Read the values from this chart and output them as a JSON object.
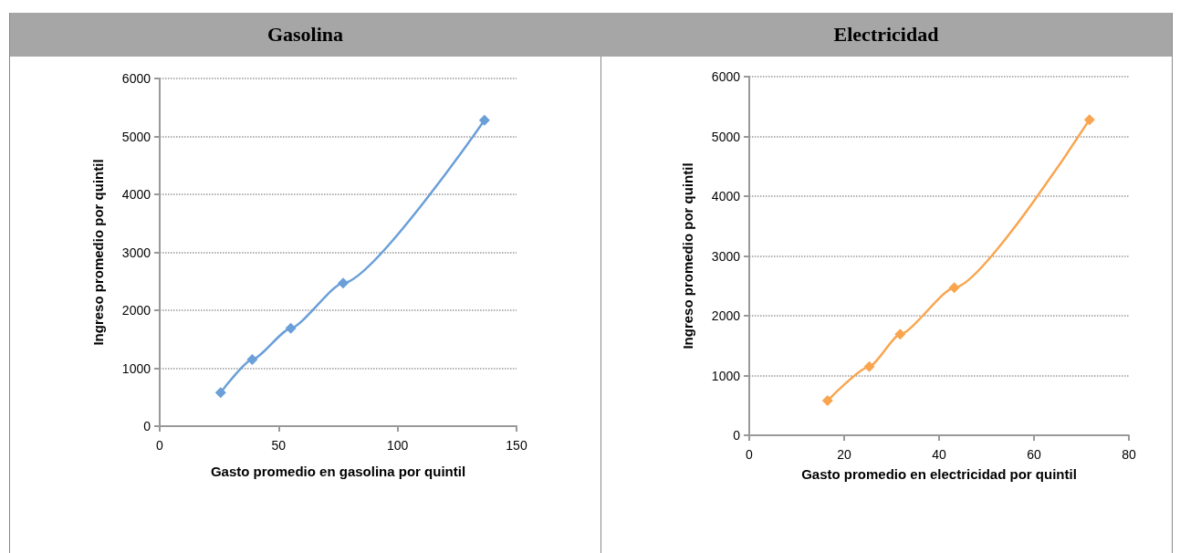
{
  "chart_data": [
    {
      "type": "line",
      "title": "Gasolina",
      "xlabel": "Gasto promedio en gasolina por quintil",
      "ylabel": "Ingreso promedio por quintil",
      "x": [
        25.6,
        38.9,
        55.1,
        77.1,
        136.5
      ],
      "series": [
        {
          "color": "#6a9fd8",
          "values": [
            580,
            1150,
            1690,
            2470,
            5280
          ]
        }
      ],
      "xlim": [
        0,
        150
      ],
      "xticks": [
        0,
        50,
        100,
        150
      ],
      "ylim": [
        0,
        6000
      ],
      "yticks": [
        0,
        1000,
        2000,
        3000,
        4000,
        5000,
        6000
      ],
      "grid": "y",
      "marker": "diamond"
    },
    {
      "type": "line",
      "title": "Electricidad",
      "xlabel": "Gasto promedio en electricidad por quintil",
      "ylabel": "Ingreso promedio por quintil",
      "x": [
        16.5,
        25.3,
        31.8,
        43.2,
        71.7
      ],
      "series": [
        {
          "color": "#f9a54f",
          "values": [
            580,
            1150,
            1690,
            2470,
            5280
          ]
        }
      ],
      "xlim": [
        0,
        80
      ],
      "xticks": [
        0,
        20,
        40,
        60,
        80
      ],
      "ylim": [
        0,
        6000
      ],
      "yticks": [
        0,
        1000,
        2000,
        3000,
        4000,
        5000,
        6000
      ],
      "grid": "y",
      "marker": "diamond"
    }
  ]
}
